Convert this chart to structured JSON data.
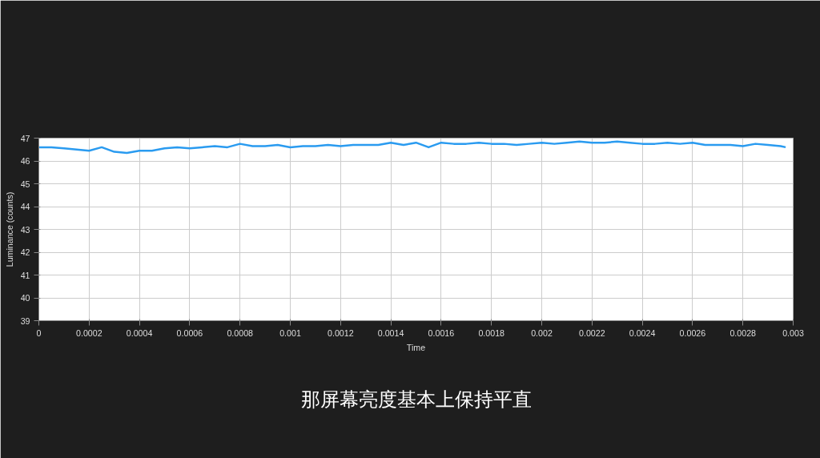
{
  "chart_data": {
    "type": "line",
    "xlabel": "Time",
    "ylabel": "Luminance (counts)",
    "xlim": [
      0,
      0.003
    ],
    "ylim": [
      39,
      47
    ],
    "xticks": [
      0,
      0.0002,
      0.0004,
      0.0006,
      0.0008,
      0.001,
      0.0012,
      0.0014,
      0.0016,
      0.0018,
      0.002,
      0.0022,
      0.0024,
      0.0026,
      0.0028,
      0.003
    ],
    "yticks": [
      39,
      40,
      41,
      42,
      43,
      44,
      45,
      46,
      47
    ],
    "grid": true,
    "marker": "none",
    "line_style": "solid",
    "annotations": [
      "那屏幕亮度基本上保持平直"
    ],
    "x": [
      0,
      5e-05,
      0.0001,
      0.00015,
      0.0002,
      0.00025,
      0.0003,
      0.00035,
      0.0004,
      0.00045,
      0.0005,
      0.00055,
      0.0006,
      0.00065,
      0.0007,
      0.00075,
      0.0008,
      0.00085,
      0.0009,
      0.00095,
      0.001,
      0.00105,
      0.0011,
      0.00115,
      0.0012,
      0.00125,
      0.0013,
      0.00135,
      0.0014,
      0.00145,
      0.0015,
      0.00155,
      0.0016,
      0.00165,
      0.0017,
      0.00175,
      0.0018,
      0.00185,
      0.0019,
      0.00195,
      0.002,
      0.00205,
      0.0021,
      0.00215,
      0.0022,
      0.00225,
      0.0023,
      0.00235,
      0.0024,
      0.00245,
      0.0025,
      0.00255,
      0.0026,
      0.00265,
      0.0027,
      0.00275,
      0.0028,
      0.00285,
      0.0029,
      0.00295,
      0.00297
    ],
    "series": [
      {
        "color": "#2a9bf0",
        "values": [
          46.6,
          46.6,
          46.55,
          46.5,
          46.45,
          46.6,
          46.4,
          46.35,
          46.45,
          46.45,
          46.55,
          46.6,
          46.55,
          46.6,
          46.65,
          46.6,
          46.75,
          46.65,
          46.65,
          46.7,
          46.6,
          46.65,
          46.65,
          46.7,
          46.65,
          46.7,
          46.7,
          46.7,
          46.8,
          46.7,
          46.8,
          46.6,
          46.8,
          46.75,
          46.75,
          46.8,
          46.75,
          46.75,
          46.7,
          46.75,
          46.8,
          46.75,
          46.8,
          46.85,
          46.8,
          46.8,
          46.85,
          46.8,
          46.75,
          46.75,
          46.8,
          46.75,
          46.8,
          46.7,
          46.7,
          46.7,
          46.65,
          46.75,
          46.7,
          46.65,
          46.6
        ]
      }
    ]
  }
}
